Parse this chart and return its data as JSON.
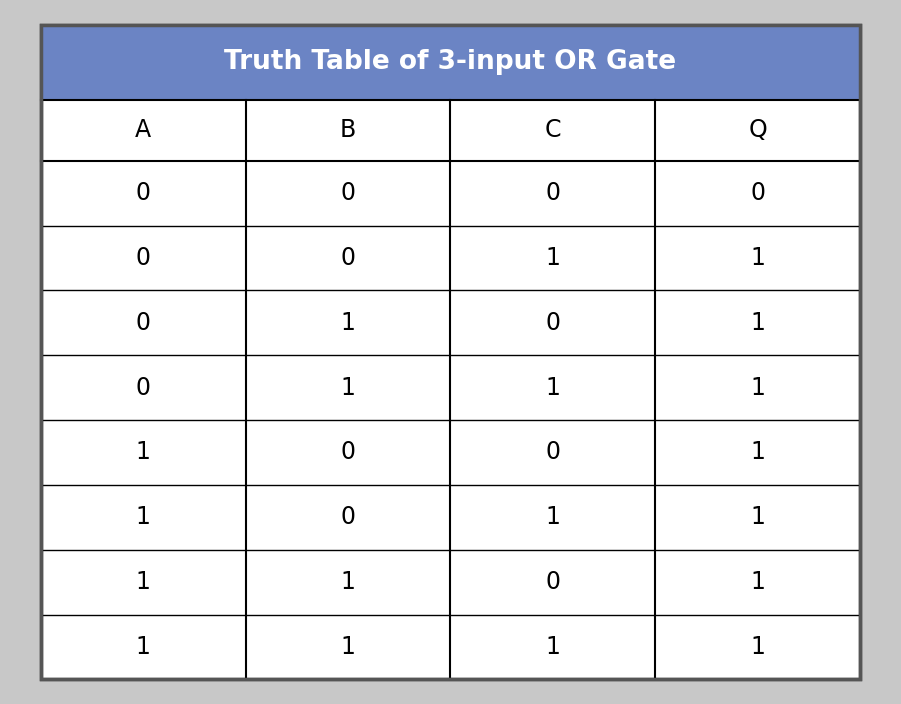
{
  "title": "Truth Table of 3-input OR Gate",
  "columns": [
    "A",
    "B",
    "C",
    "Q"
  ],
  "rows": [
    [
      "0",
      "0",
      "0",
      "0"
    ],
    [
      "0",
      "0",
      "1",
      "1"
    ],
    [
      "0",
      "1",
      "0",
      "1"
    ],
    [
      "0",
      "1",
      "1",
      "1"
    ],
    [
      "1",
      "0",
      "0",
      "1"
    ],
    [
      "1",
      "0",
      "1",
      "1"
    ],
    [
      "1",
      "1",
      "0",
      "1"
    ],
    [
      "1",
      "1",
      "1",
      "1"
    ]
  ],
  "header_bg_color": "#6b84c4",
  "header_text_color": "#ffffff",
  "cell_text_color": "#000000",
  "line_color": "#000000",
  "cell_bg_color": "#ffffff",
  "outer_border_color": "#555555",
  "outer_bg_color": "#c8c8c8",
  "title_fontsize": 19,
  "col_fontsize": 17,
  "cell_fontsize": 17,
  "fig_bg_color": "#c8c8c8"
}
